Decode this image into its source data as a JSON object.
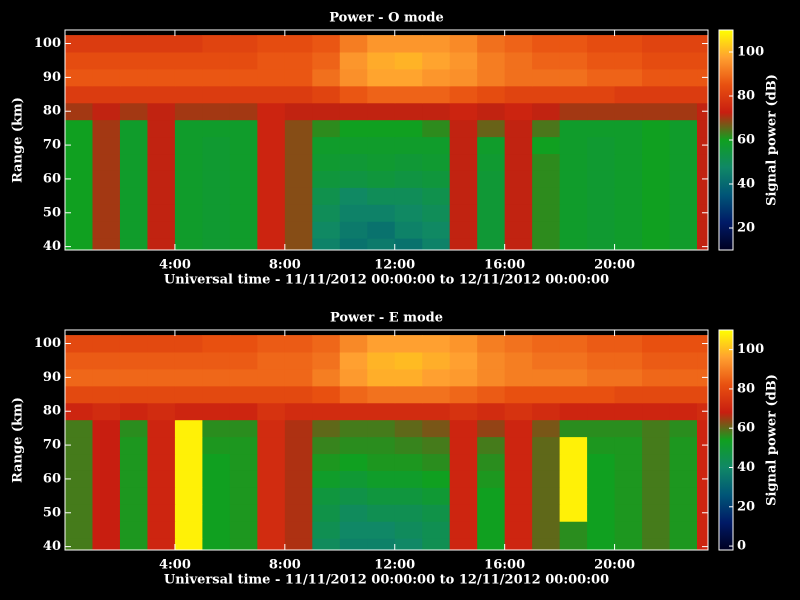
{
  "chart_data": [
    {
      "type": "heatmap",
      "title": "Power - O mode",
      "xlabel": "Universal time - 11/11/2012 00:00:00 to 12/11/2012 00:00:00",
      "ylabel": "Range (km)",
      "zlabel": "Signal power (dB)",
      "x": [
        0.5,
        1.5,
        2.5,
        3.5,
        4.5,
        5.5,
        6.5,
        7.5,
        8.5,
        9.5,
        10.5,
        11.5,
        12.5,
        13.5,
        14.5,
        15.5,
        16.5,
        17.5,
        18.5,
        19.5,
        20.5,
        21.5,
        22.5,
        23.5
      ],
      "y": [
        40,
        45,
        50,
        55,
        60,
        65,
        70,
        75,
        80,
        85,
        90,
        95,
        100
      ],
      "z": [
        [
          60,
          70,
          58,
          72,
          58,
          57,
          58,
          74,
          68,
          46,
          42,
          44,
          42,
          46,
          72,
          56,
          72,
          62,
          58,
          57,
          58,
          60,
          58,
          72
        ],
        [
          60,
          70,
          58,
          72,
          58,
          57,
          58,
          74,
          68,
          48,
          44,
          42,
          46,
          48,
          72,
          56,
          72,
          62,
          58,
          57,
          58,
          60,
          58,
          72
        ],
        [
          60,
          70,
          58,
          72,
          58,
          57,
          58,
          74,
          68,
          50,
          46,
          46,
          48,
          50,
          72,
          56,
          72,
          62,
          58,
          57,
          58,
          60,
          58,
          72
        ],
        [
          60,
          70,
          58,
          72,
          58,
          57,
          58,
          74,
          68,
          52,
          48,
          50,
          50,
          52,
          72,
          56,
          72,
          62,
          58,
          57,
          58,
          60,
          58,
          72
        ],
        [
          60,
          70,
          58,
          72,
          58,
          57,
          58,
          74,
          68,
          55,
          54,
          55,
          54,
          55,
          72,
          56,
          72,
          62,
          58,
          57,
          58,
          60,
          58,
          72
        ],
        [
          60,
          70,
          58,
          72,
          58,
          57,
          58,
          74,
          68,
          57,
          56,
          57,
          56,
          57,
          72,
          57,
          72,
          62,
          58,
          57,
          58,
          60,
          58,
          72
        ],
        [
          60,
          70,
          58,
          72,
          58,
          57,
          58,
          74,
          68,
          58,
          58,
          58,
          58,
          58,
          72,
          58,
          72,
          60,
          58,
          57,
          58,
          60,
          58,
          72
        ],
        [
          60,
          70,
          58,
          72,
          58,
          58,
          58,
          74,
          68,
          62,
          60,
          60,
          60,
          62,
          72,
          66,
          72,
          64,
          58,
          58,
          58,
          60,
          58,
          72
        ],
        [
          70,
          72,
          70,
          72,
          70,
          70,
          70,
          74,
          72,
          72,
          72,
          72,
          72,
          72,
          74,
          72,
          74,
          72,
          70,
          70,
          70,
          70,
          70,
          72
        ],
        [
          80,
          80,
          80,
          80,
          80,
          80,
          80,
          80,
          80,
          82,
          86,
          88,
          88,
          88,
          86,
          84,
          82,
          82,
          82,
          82,
          80,
          80,
          80,
          80
        ],
        [
          86,
          86,
          86,
          86,
          86,
          86,
          86,
          86,
          86,
          90,
          95,
          98,
          98,
          96,
          95,
          92,
          90,
          90,
          90,
          88,
          88,
          86,
          86,
          86
        ],
        [
          84,
          84,
          84,
          84,
          84,
          84,
          84,
          86,
          86,
          88,
          96,
          99,
          100,
          98,
          96,
          92,
          90,
          88,
          88,
          86,
          86,
          84,
          84,
          84
        ],
        [
          80,
          80,
          80,
          80,
          80,
          82,
          82,
          84,
          84,
          86,
          92,
          96,
          96,
          96,
          94,
          90,
          88,
          86,
          86,
          84,
          84,
          82,
          82,
          82
        ]
      ],
      "xlim": [
        0,
        23.4
      ],
      "ylim": [
        39,
        104
      ],
      "zlim": [
        10,
        110
      ],
      "xticks": [
        {
          "value": 4,
          "label": "4:00"
        },
        {
          "value": 8,
          "label": "8:00"
        },
        {
          "value": 12,
          "label": "12:00"
        },
        {
          "value": 16,
          "label": "16:00"
        },
        {
          "value": 20,
          "label": "20:00"
        }
      ],
      "yticks": [
        40,
        50,
        60,
        70,
        80,
        90,
        100
      ],
      "zticks": [
        20,
        40,
        60,
        80,
        100
      ],
      "colorscale": [
        "#000020",
        "#001a66",
        "#005577",
        "#108866",
        "#10a020",
        "#c81e10",
        "#e85010",
        "#ffa030",
        "#ffff00"
      ]
    },
    {
      "type": "heatmap",
      "title": "Power - E mode",
      "xlabel": "Universal time - 11/11/2012 00:00:00 to 12/11/2012 00:00:00",
      "ylabel": "Range (km)",
      "zlabel": "Signal power (dB)",
      "x": [
        0.5,
        1.5,
        2.5,
        3.5,
        4.5,
        5.5,
        6.5,
        7.5,
        8.5,
        9.5,
        10.5,
        11.5,
        12.5,
        13.5,
        14.5,
        15.5,
        16.5,
        17.5,
        18.5,
        19.5,
        20.5,
        21.5,
        22.5,
        23.5
      ],
      "y": [
        40,
        45,
        50,
        55,
        60,
        65,
        70,
        75,
        80,
        85,
        90,
        95,
        100
      ],
      "z": [
        [
          58,
          68,
          55,
          70,
          108,
          54,
          55,
          72,
          66,
          42,
          38,
          38,
          40,
          44,
          70,
          54,
          70,
          60,
          56,
          54,
          55,
          58,
          55,
          70
        ],
        [
          58,
          68,
          55,
          70,
          108,
          54,
          55,
          72,
          66,
          44,
          40,
          40,
          42,
          44,
          70,
          54,
          70,
          60,
          56,
          54,
          55,
          58,
          55,
          70
        ],
        [
          58,
          68,
          55,
          70,
          108,
          54,
          55,
          72,
          66,
          46,
          42,
          44,
          44,
          46,
          70,
          54,
          70,
          60,
          108,
          54,
          55,
          58,
          55,
          70
        ],
        [
          58,
          68,
          55,
          70,
          108,
          54,
          55,
          72,
          66,
          48,
          46,
          48,
          48,
          50,
          70,
          54,
          70,
          60,
          108,
          54,
          55,
          58,
          55,
          70
        ],
        [
          58,
          68,
          55,
          70,
          108,
          54,
          55,
          72,
          66,
          52,
          50,
          52,
          52,
          54,
          70,
          55,
          70,
          60,
          108,
          54,
          55,
          58,
          55,
          70
        ],
        [
          58,
          68,
          55,
          70,
          108,
          54,
          55,
          72,
          66,
          55,
          54,
          55,
          55,
          56,
          70,
          56,
          70,
          60,
          108,
          54,
          55,
          58,
          55,
          70
        ],
        [
          58,
          68,
          55,
          70,
          108,
          55,
          55,
          72,
          66,
          57,
          56,
          56,
          57,
          58,
          70,
          58,
          70,
          60,
          108,
          55,
          55,
          58,
          55,
          70
        ],
        [
          58,
          68,
          56,
          70,
          108,
          56,
          56,
          72,
          66,
          60,
          58,
          58,
          60,
          62,
          70,
          64,
          70,
          62,
          56,
          56,
          56,
          58,
          56,
          70
        ],
        [
          70,
          72,
          70,
          72,
          70,
          70,
          70,
          74,
          72,
          72,
          72,
          72,
          72,
          72,
          74,
          72,
          74,
          72,
          70,
          70,
          70,
          70,
          70,
          72
        ],
        [
          80,
          80,
          80,
          80,
          80,
          80,
          80,
          80,
          80,
          82,
          86,
          88,
          88,
          88,
          86,
          84,
          82,
          82,
          82,
          82,
          80,
          80,
          80,
          80
        ],
        [
          86,
          86,
          86,
          86,
          86,
          86,
          86,
          86,
          86,
          90,
          95,
          98,
          98,
          96,
          95,
          92,
          90,
          90,
          90,
          88,
          88,
          86,
          86,
          86
        ],
        [
          84,
          84,
          84,
          84,
          84,
          84,
          84,
          86,
          86,
          88,
          96,
          99,
          100,
          98,
          96,
          92,
          90,
          88,
          88,
          86,
          86,
          84,
          84,
          84
        ],
        [
          80,
          80,
          80,
          80,
          80,
          82,
          82,
          84,
          84,
          86,
          92,
          96,
          96,
          96,
          94,
          90,
          88,
          86,
          86,
          84,
          84,
          82,
          82,
          82
        ]
      ],
      "xlim": [
        0,
        23.4
      ],
      "ylim": [
        39,
        104
      ],
      "zlim": [
        -2,
        110
      ],
      "xticks": [
        {
          "value": 4,
          "label": "4:00"
        },
        {
          "value": 8,
          "label": "8:00"
        },
        {
          "value": 12,
          "label": "12:00"
        },
        {
          "value": 16,
          "label": "16:00"
        },
        {
          "value": 20,
          "label": "20:00"
        }
      ],
      "yticks": [
        40,
        50,
        60,
        70,
        80,
        90,
        100
      ],
      "zticks": [
        0,
        20,
        40,
        60,
        80,
        100
      ],
      "colorscale": [
        "#000020",
        "#001a66",
        "#005577",
        "#108866",
        "#10a020",
        "#c81e10",
        "#e85010",
        "#ffa030",
        "#ffff00"
      ]
    }
  ]
}
